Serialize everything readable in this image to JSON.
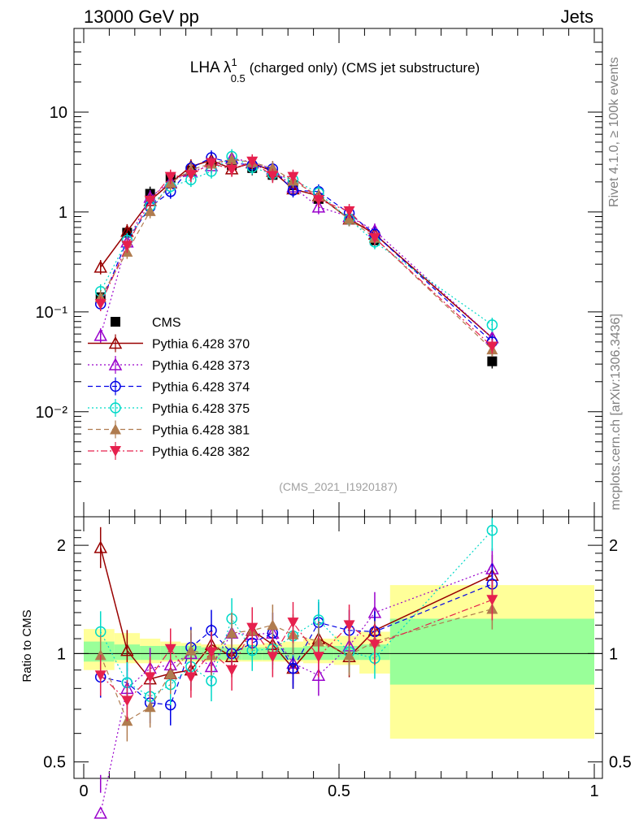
{
  "header": {
    "left": "13000 GeV pp",
    "right": "Jets"
  },
  "side_labels": {
    "rivet": "Rivet 4.1.0, ≥ 100k events",
    "mcplots": "mcplots.cern.ch [arXiv:1306.3436]"
  },
  "colors": {
    "CMS": "#000000",
    "p370": "#990000",
    "p373": "#9900cc",
    "p374": "#0000e6",
    "p375": "#00d9c8",
    "p381": "#b07c4f",
    "p382": "#e6204d",
    "band_inner": "#99ff99",
    "band_outer": "#ffff99"
  },
  "chart_data": [
    {
      "type": "line",
      "panel": "main",
      "title": "LHA λ¹₀.₅ (charged only) (CMS jet substructure)",
      "title_parts": {
        "lead": "LHA λ",
        "sup": "1",
        "sub": "0.5",
        "tail": "(charged only) (CMS jet substructure)"
      },
      "watermark": "(CMS_2021_I1920187)",
      "xlim": [
        0,
        1
      ],
      "ylim": [
        0.0012,
        50
      ],
      "yscale": "log",
      "ytick_labels": [
        "10⁻²",
        "10⁻¹",
        "1",
        "10"
      ],
      "ytick_values": [
        0.01,
        0.1,
        1,
        10
      ],
      "x": [
        0.033,
        0.085,
        0.13,
        0.17,
        0.21,
        0.25,
        0.29,
        0.33,
        0.37,
        0.41,
        0.46,
        0.52,
        0.57,
        0.8
      ],
      "series": [
        {
          "name": "CMS",
          "values": [
            0.14,
            0.62,
            1.52,
            2.2,
            2.6,
            3.05,
            2.95,
            2.75,
            2.35,
            1.85,
            1.35,
            0.85,
            0.52,
            0.032
          ]
        },
        {
          "name": "Pythia 6.428 370",
          "values": [
            0.28,
            0.64,
            1.3,
            1.95,
            2.85,
            3.3,
            2.7,
            3.1,
            2.55,
            1.7,
            1.45,
            0.85,
            0.6,
            0.055
          ]
        },
        {
          "name": "Pythia 6.428 373",
          "values": [
            0.058,
            0.5,
            1.4,
            2.0,
            2.55,
            2.9,
            3.45,
            3.15,
            2.7,
            1.78,
            1.12,
            0.9,
            0.65,
            0.055
          ]
        },
        {
          "name": "Pythia 6.428 374",
          "values": [
            0.12,
            0.52,
            1.12,
            1.6,
            2.75,
            3.5,
            3.1,
            2.95,
            2.7,
            1.65,
            1.6,
            0.97,
            0.6,
            0.05
          ]
        },
        {
          "name": "Pythia 6.428 375",
          "values": [
            0.16,
            0.52,
            1.15,
            1.8,
            2.1,
            2.55,
            3.6,
            2.8,
            2.4,
            2.1,
            1.55,
            0.85,
            0.5,
            0.074
          ]
        },
        {
          "name": "Pythia 6.428 381",
          "values": [
            0.14,
            0.4,
            1.02,
            1.95,
            2.65,
            3.05,
            3.35,
            3.15,
            2.75,
            2.05,
            1.45,
            0.85,
            0.55,
            0.042
          ]
        },
        {
          "name": "Pythia 6.428 382",
          "values": [
            0.12,
            0.46,
            1.3,
            2.25,
            2.35,
            3.1,
            2.65,
            3.2,
            2.3,
            2.25,
            1.32,
            1.02,
            0.55,
            0.045
          ]
        }
      ]
    },
    {
      "type": "line",
      "panel": "ratio",
      "ylabel": "Ratio to CMS",
      "xlim": [
        0,
        1
      ],
      "ylim": [
        0.45,
        2.4
      ],
      "yscale": "log",
      "xtick_labels": [
        "0",
        "0.5",
        "1"
      ],
      "xtick_values": [
        0,
        0.5,
        1
      ],
      "ytick_labels": [
        "0.5",
        "1",
        "2"
      ],
      "ytick_values": [
        0.5,
        1,
        2
      ],
      "x": [
        0.033,
        0.085,
        0.13,
        0.17,
        0.21,
        0.25,
        0.29,
        0.33,
        0.37,
        0.41,
        0.46,
        0.52,
        0.57,
        0.8
      ],
      "series": [
        {
          "name": "Pythia 6.428 370",
          "values": [
            1.97,
            1.02,
            0.85,
            0.88,
            0.9,
            1.06,
            0.98,
            1.16,
            1.06,
            0.91,
            1.1,
            0.98,
            1.16,
            1.65
          ]
        },
        {
          "name": "Pythia 6.428 373",
          "values": [
            0.36,
            0.8,
            0.91,
            0.93,
            1.0,
            0.92,
            1.14,
            1.13,
            1.14,
            0.94,
            0.87,
            1.05,
            1.3,
            1.72
          ]
        },
        {
          "name": "Pythia 6.428 374",
          "values": [
            0.86,
            0.83,
            0.73,
            0.72,
            1.04,
            1.16,
            1.0,
            1.07,
            1.14,
            0.91,
            1.22,
            1.16,
            1.15,
            1.56
          ]
        },
        {
          "name": "Pythia 6.428 375",
          "values": [
            1.15,
            0.83,
            0.76,
            0.82,
            0.92,
            0.84,
            1.25,
            1.02,
            1.03,
            1.12,
            1.24,
            1.01,
            0.97,
            2.2
          ]
        },
        {
          "name": "Pythia 6.428 381",
          "values": [
            0.99,
            0.65,
            0.71,
            0.88,
            1.02,
            0.99,
            1.14,
            1.16,
            1.2,
            1.13,
            1.08,
            0.99,
            1.08,
            1.33
          ]
        },
        {
          "name": "Pythia 6.428 382",
          "values": [
            0.87,
            0.74,
            0.86,
            1.03,
            0.86,
            1.01,
            0.9,
            1.18,
            0.98,
            1.22,
            0.98,
            1.2,
            1.06,
            1.41
          ]
        }
      ],
      "bands": {
        "edges": [
          0,
          0.06,
          0.11,
          0.15,
          0.19,
          0.23,
          0.27,
          0.31,
          0.35,
          0.39,
          0.43,
          0.49,
          0.54,
          0.6,
          1.0
        ],
        "inner_lo": [
          0.95,
          0.96,
          0.96,
          0.96,
          0.96,
          0.96,
          0.96,
          0.96,
          0.96,
          0.96,
          0.96,
          0.96,
          0.96,
          0.82
        ],
        "inner_hi": [
          1.08,
          1.06,
          1.05,
          1.05,
          1.05,
          1.04,
          1.04,
          1.04,
          1.04,
          1.04,
          1.05,
          1.05,
          1.06,
          1.25
        ],
        "outer_lo": [
          0.9,
          0.94,
          0.94,
          0.95,
          0.95,
          0.95,
          0.95,
          0.95,
          0.95,
          0.95,
          0.94,
          0.93,
          0.88,
          0.58
        ],
        "outer_hi": [
          1.17,
          1.14,
          1.1,
          1.08,
          1.07,
          1.06,
          1.06,
          1.06,
          1.07,
          1.08,
          1.1,
          1.12,
          1.15,
          1.55
        ]
      }
    }
  ]
}
